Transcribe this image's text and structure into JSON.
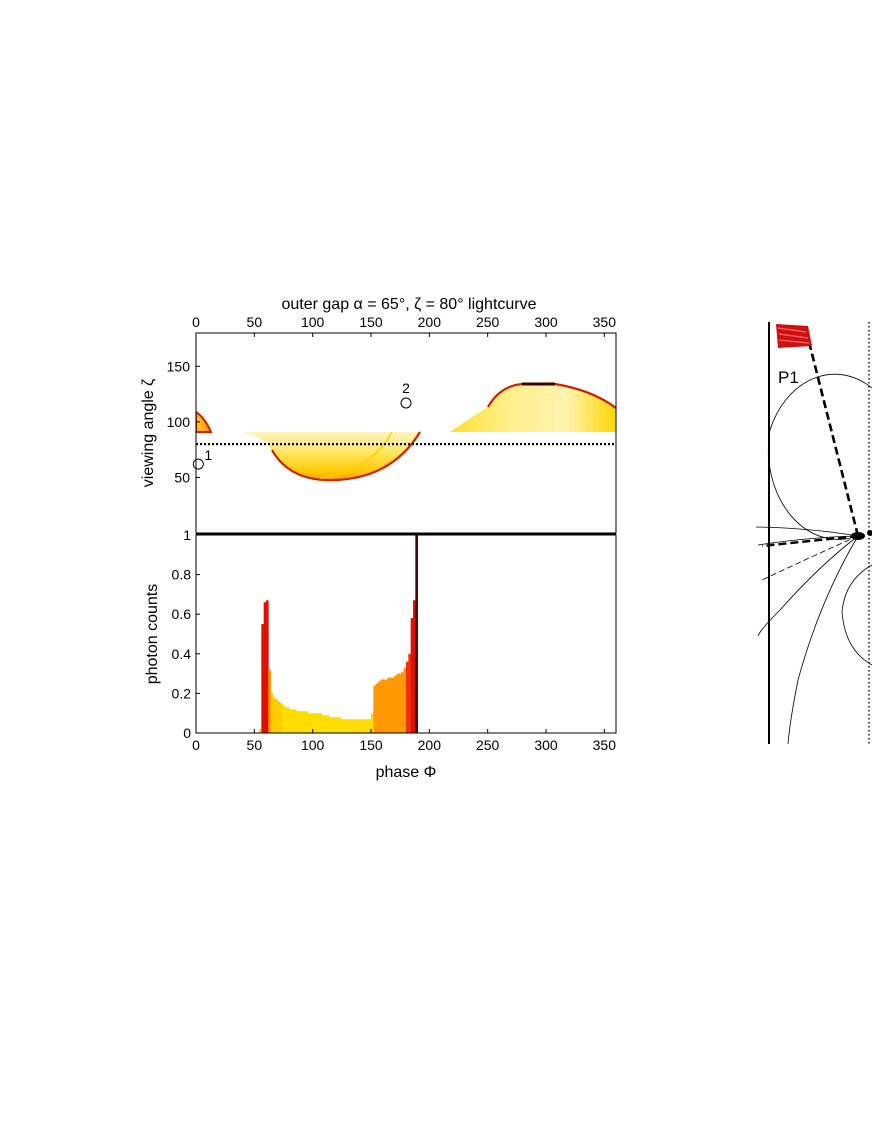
{
  "colors": {
    "background": "#ffffff",
    "axis": "#000000",
    "sky_fill_light": "#fff7c8",
    "sky_fill_mid": "#ffe14a",
    "sky_fill_deep": "#ffb000",
    "sky_edge": "#cc2200",
    "sky_edge_dark": "#3a0000",
    "bar_yellow": "#ffdd00",
    "bar_orange": "#ff9900",
    "bar_red": "#dd1100",
    "bar_dark": "#4a0000",
    "flux_tube_marker": "#cc1111"
  },
  "chart_data": [
    {
      "type": "heatmap",
      "title": "outer gap α = 65°, ζ = 80° lightcurve",
      "xlabel": "",
      "ylabel": "viewing angle ζ",
      "xlim": [
        0,
        360
      ],
      "ylim": [
        0,
        180
      ],
      "x_ticks": [
        "0",
        "50",
        "100",
        "150",
        "200",
        "250",
        "300",
        "350"
      ],
      "y_ticks": [
        "50",
        "100",
        "150"
      ],
      "x_tick_position": "top",
      "cut_line_zeta": 80,
      "cut_line_style": "dotted",
      "markers": [
        {
          "label": "1",
          "phase": 2,
          "zeta": 62
        },
        {
          "label": "2",
          "phase": 180,
          "zeta": 117
        }
      ],
      "emission_regions": [
        {
          "phase_range": [
            0,
            15
          ],
          "zeta_range": [
            90,
            105
          ]
        },
        {
          "phase_range": [
            37,
            193
          ],
          "zeta_min": 50,
          "zeta_max": 90,
          "min_at_phase": 115
        },
        {
          "phase_range": [
            218,
            360
          ],
          "zeta_min": 90,
          "zeta_max": 131,
          "max_at_phase": 285
        }
      ]
    },
    {
      "type": "bar",
      "title": "",
      "xlabel": "phase Φ",
      "ylabel": "photon counts",
      "xlim": [
        0,
        360
      ],
      "ylim": [
        0,
        1
      ],
      "x_ticks": [
        "0",
        "50",
        "100",
        "150",
        "200",
        "250",
        "300",
        "350"
      ],
      "y_ticks": [
        "0",
        "0.2",
        "0.4",
        "0.6",
        "0.8",
        "1"
      ],
      "bar_width_deg": 2,
      "x": [
        54,
        56,
        58,
        60,
        62,
        64,
        66,
        68,
        70,
        72,
        74,
        76,
        78,
        80,
        82,
        84,
        86,
        88,
        90,
        92,
        94,
        96,
        98,
        100,
        102,
        104,
        106,
        108,
        110,
        112,
        114,
        116,
        118,
        120,
        122,
        124,
        126,
        128,
        130,
        132,
        134,
        136,
        138,
        140,
        142,
        144,
        146,
        148,
        150,
        152,
        154,
        156,
        158,
        160,
        162,
        164,
        166,
        168,
        170,
        172,
        174,
        176,
        178,
        180,
        182,
        184,
        186,
        188
      ],
      "values": [
        0.02,
        0.55,
        0.66,
        0.67,
        0.32,
        0.2,
        0.18,
        0.17,
        0.16,
        0.15,
        0.14,
        0.13,
        0.13,
        0.12,
        0.12,
        0.12,
        0.11,
        0.11,
        0.11,
        0.11,
        0.11,
        0.1,
        0.1,
        0.1,
        0.1,
        0.1,
        0.1,
        0.09,
        0.09,
        0.09,
        0.08,
        0.08,
        0.08,
        0.08,
        0.08,
        0.07,
        0.07,
        0.07,
        0.07,
        0.07,
        0.07,
        0.07,
        0.07,
        0.07,
        0.07,
        0.07,
        0.07,
        0.07,
        0.1,
        0.24,
        0.25,
        0.26,
        0.27,
        0.27,
        0.27,
        0.28,
        0.28,
        0.28,
        0.29,
        0.3,
        0.3,
        0.31,
        0.33,
        0.36,
        0.4,
        0.58,
        0.67,
        1.0
      ]
    }
  ],
  "diagram": {
    "label_p1": "P1"
  }
}
